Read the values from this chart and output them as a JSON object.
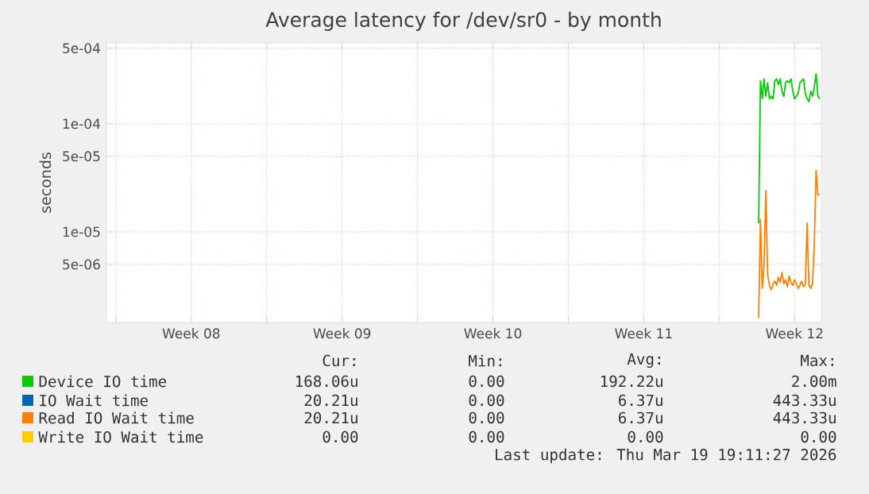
{
  "chart_data": {
    "type": "line",
    "title": "Average latency for /dev/sr0 - by month",
    "ylabel": "seconds",
    "log": "y",
    "grid": true,
    "legend": "bottom",
    "line_style": "solid",
    "xlim": [
      "2026-02-15T13:30",
      "2026-03-20T17:50"
    ],
    "xticks": [
      {
        "value": "2026-02-16T00:00",
        "label": null
      },
      {
        "value": "2026-02-19T12:00",
        "label": "Week 08"
      },
      {
        "value": "2026-02-23T00:00",
        "label": null
      },
      {
        "value": "2026-02-26T12:00",
        "label": "Week 09"
      },
      {
        "value": "2026-03-02T00:00",
        "label": null
      },
      {
        "value": "2026-03-05T12:00",
        "label": "Week 10"
      },
      {
        "value": "2026-03-09T00:00",
        "label": null
      },
      {
        "value": "2026-03-12T12:00",
        "label": "Week 11"
      },
      {
        "value": "2026-03-16T00:00",
        "label": null
      },
      {
        "value": "2026-03-19T12:00",
        "label": "Week 12"
      }
    ],
    "ylim": [
      1.45e-06,
      0.00056
    ],
    "yticks": [
      {
        "value": 5e-06,
        "label": "5e-06"
      },
      {
        "value": 1e-05,
        "label": "1e-05"
      },
      {
        "value": 5e-05,
        "label": "5e-05"
      },
      {
        "value": 0.0001,
        "label": "1e-04"
      },
      {
        "value": 0.0005,
        "label": "5e-04"
      }
    ],
    "x": [
      "2026-03-17T20:00",
      "2026-03-17T22:00",
      "2026-03-18T00:00",
      "2026-03-18T02:00",
      "2026-03-18T04:00",
      "2026-03-18T06:00",
      "2026-03-18T08:00",
      "2026-03-18T10:00",
      "2026-03-18T12:00",
      "2026-03-18T14:00",
      "2026-03-18T16:00",
      "2026-03-18T18:00",
      "2026-03-18T20:00",
      "2026-03-18T22:00",
      "2026-03-19T00:00",
      "2026-03-19T02:00",
      "2026-03-19T04:00",
      "2026-03-19T06:00",
      "2026-03-19T08:00",
      "2026-03-19T10:00",
      "2026-03-19T12:00",
      "2026-03-19T14:00",
      "2026-03-19T16:00",
      "2026-03-19T18:00",
      "2026-03-19T20:00",
      "2026-03-19T22:00",
      "2026-03-20T00:00",
      "2026-03-20T02:00",
      "2026-03-20T04:00",
      "2026-03-20T06:00",
      "2026-03-20T08:00",
      "2026-03-20T10:00",
      "2026-03-20T12:00",
      "2026-03-20T14:00",
      "2026-03-20T16:00"
    ],
    "series": [
      {
        "name": "Device IO time",
        "color": "#00cc00",
        "values": [
          1.2e-05,
          0.00025,
          0.00017,
          0.00026,
          0.00018,
          0.00024,
          0.00017,
          0.00018,
          0.00017,
          0.00025,
          0.00026,
          0.00023,
          0.00026,
          0.0002,
          0.00018,
          0.00024,
          0.00025,
          0.00024,
          0.00026,
          0.0002,
          0.00017,
          0.00018,
          0.00019,
          0.00024,
          0.00025,
          0.00026,
          0.00019,
          0.00017,
          0.00016,
          0.0002,
          0.00018,
          0.00022,
          0.00029,
          0.00018,
          0.00017
        ]
      },
      {
        "name": "IO Wait time",
        "color": "#0066b3",
        "values": [
          null,
          null,
          null,
          null,
          null,
          null,
          null,
          null,
          null,
          null,
          null,
          null,
          null,
          null,
          null,
          null,
          null,
          null,
          null,
          null,
          null,
          null,
          null,
          null,
          null,
          null,
          null,
          null,
          null,
          null,
          null,
          null,
          null,
          null,
          null
        ]
      },
      {
        "name": "Read IO Wait time",
        "color": "#ff8000",
        "values": [
          1.6e-06,
          1.3e-05,
          3e-06,
          5e-06,
          2.4e-05,
          4e-06,
          3.2e-06,
          2.9e-06,
          3.3e-06,
          3.5e-06,
          3.2e-06,
          3.8e-06,
          3.4e-06,
          4.2e-06,
          3.3e-06,
          3.6e-06,
          3.1e-06,
          3.9e-06,
          3.4e-06,
          3.2e-06,
          3.6e-06,
          3.3e-06,
          3e-06,
          3.2e-06,
          3.5e-06,
          3.1e-06,
          3.3e-06,
          1.2e-05,
          3.2e-06,
          3e-06,
          3.3e-06,
          8e-06,
          3.7e-05,
          2.2e-05,
          2.2e-05
        ]
      },
      {
        "name": "Write IO Wait time",
        "color": "#ffcc00",
        "values": [
          null,
          null,
          null,
          null,
          null,
          null,
          null,
          null,
          null,
          null,
          null,
          null,
          null,
          null,
          null,
          null,
          null,
          null,
          null,
          null,
          null,
          null,
          null,
          null,
          null,
          null,
          null,
          null,
          null,
          null,
          null,
          null,
          null,
          null,
          null
        ]
      }
    ],
    "annotations": [
      "Cur:",
      "Min:",
      "Avg:",
      "Max:",
      "168.06u",
      "0.00",
      "192.22u",
      "2.00m",
      "20.21u",
      "0.00",
      "6.37u",
      "443.33u",
      "20.21u",
      "0.00",
      "6.37u",
      "443.33u",
      "0.00",
      "0.00",
      "0.00",
      "0.00",
      "Last update: Thu Mar 19 19:11:27 2026"
    ]
  }
}
